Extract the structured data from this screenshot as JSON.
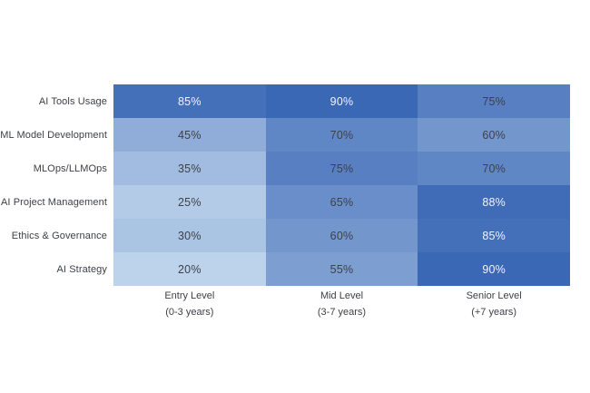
{
  "chart_data": {
    "type": "heatmap",
    "title": "",
    "rows": [
      "AI Tools Usage",
      "ML Model Development",
      "MLOps/LLMOps",
      "AI Project Management",
      "Ethics & Governance",
      "AI Strategy"
    ],
    "columns": [
      {
        "label": "Entry Level",
        "sublabel": "(0-3 years)"
      },
      {
        "label": "Mid Level",
        "sublabel": "(3-7 years)"
      },
      {
        "label": "Senior Level",
        "sublabel": "(+7 years)"
      }
    ],
    "values": [
      [
        85,
        90,
        75
      ],
      [
        45,
        70,
        60
      ],
      [
        35,
        75,
        70
      ],
      [
        25,
        65,
        88
      ],
      [
        30,
        60,
        85
      ],
      [
        20,
        55,
        90
      ]
    ],
    "value_suffix": "%",
    "color_scale": {
      "min_value": 20,
      "max_value": 90,
      "min_color": "#BDD3EC",
      "max_color": "#3B68B5"
    },
    "cell_text": {
      "dark_text_color": "#3d4148",
      "light_text_color": "#f2f4f9",
      "light_text_threshold": 80
    },
    "legend": "none",
    "grid": "off"
  }
}
